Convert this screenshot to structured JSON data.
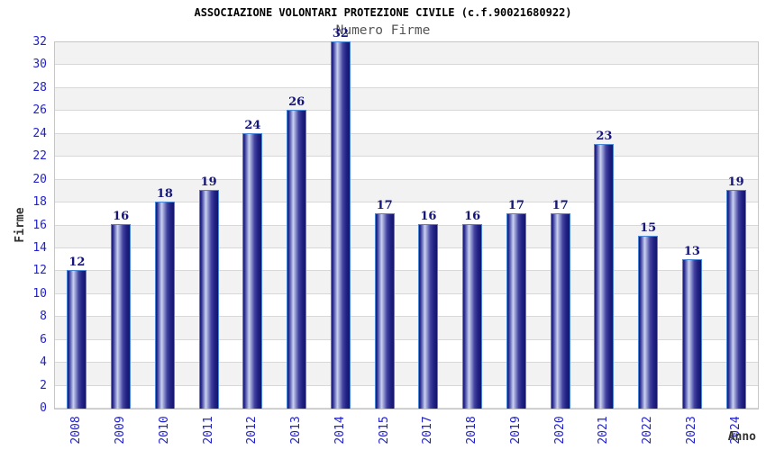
{
  "chart_data": {
    "type": "bar",
    "title": "ASSOCIAZIONE VOLONTARI PROTEZIONE CIVILE (c.f.90021680922)",
    "subtitle": "Numero Firme",
    "xlabel": "Anno",
    "ylabel": "Firme",
    "categories": [
      "2008",
      "2009",
      "2010",
      "2011",
      "2012",
      "2013",
      "2014",
      "2015",
      "2017",
      "2018",
      "2019",
      "2020",
      "2021",
      "2022",
      "2023",
      "2024"
    ],
    "values": [
      12,
      16,
      18,
      19,
      24,
      26,
      32,
      17,
      16,
      16,
      17,
      17,
      23,
      15,
      13,
      19
    ],
    "ylim": [
      0,
      32
    ],
    "ytick_step": 2,
    "grid": "horizontal-bands-alternating",
    "legend": "none",
    "bar_value_labels": true,
    "x_tick_rotation": 90
  },
  "colors": {
    "title": "#000000",
    "subtitle": "#555555",
    "axis_title": "#333333",
    "tick_label": "#2222cc",
    "value_label": "#16167a",
    "band_gray": "#f2f2f2",
    "band_white": "#ffffff",
    "grid_line": "#d8d8d8",
    "plot_border": "#c6c6c6",
    "bar_border": "#4a86d8",
    "bar_gradient_stops": [
      [
        0,
        "#1b1b77"
      ],
      [
        6,
        "#27278c"
      ],
      [
        20,
        "#7b82c4"
      ],
      [
        32,
        "#cdd2f0"
      ],
      [
        45,
        "#8d94cf"
      ],
      [
        62,
        "#43439f"
      ],
      [
        80,
        "#232387"
      ],
      [
        100,
        "#141468"
      ]
    ]
  }
}
